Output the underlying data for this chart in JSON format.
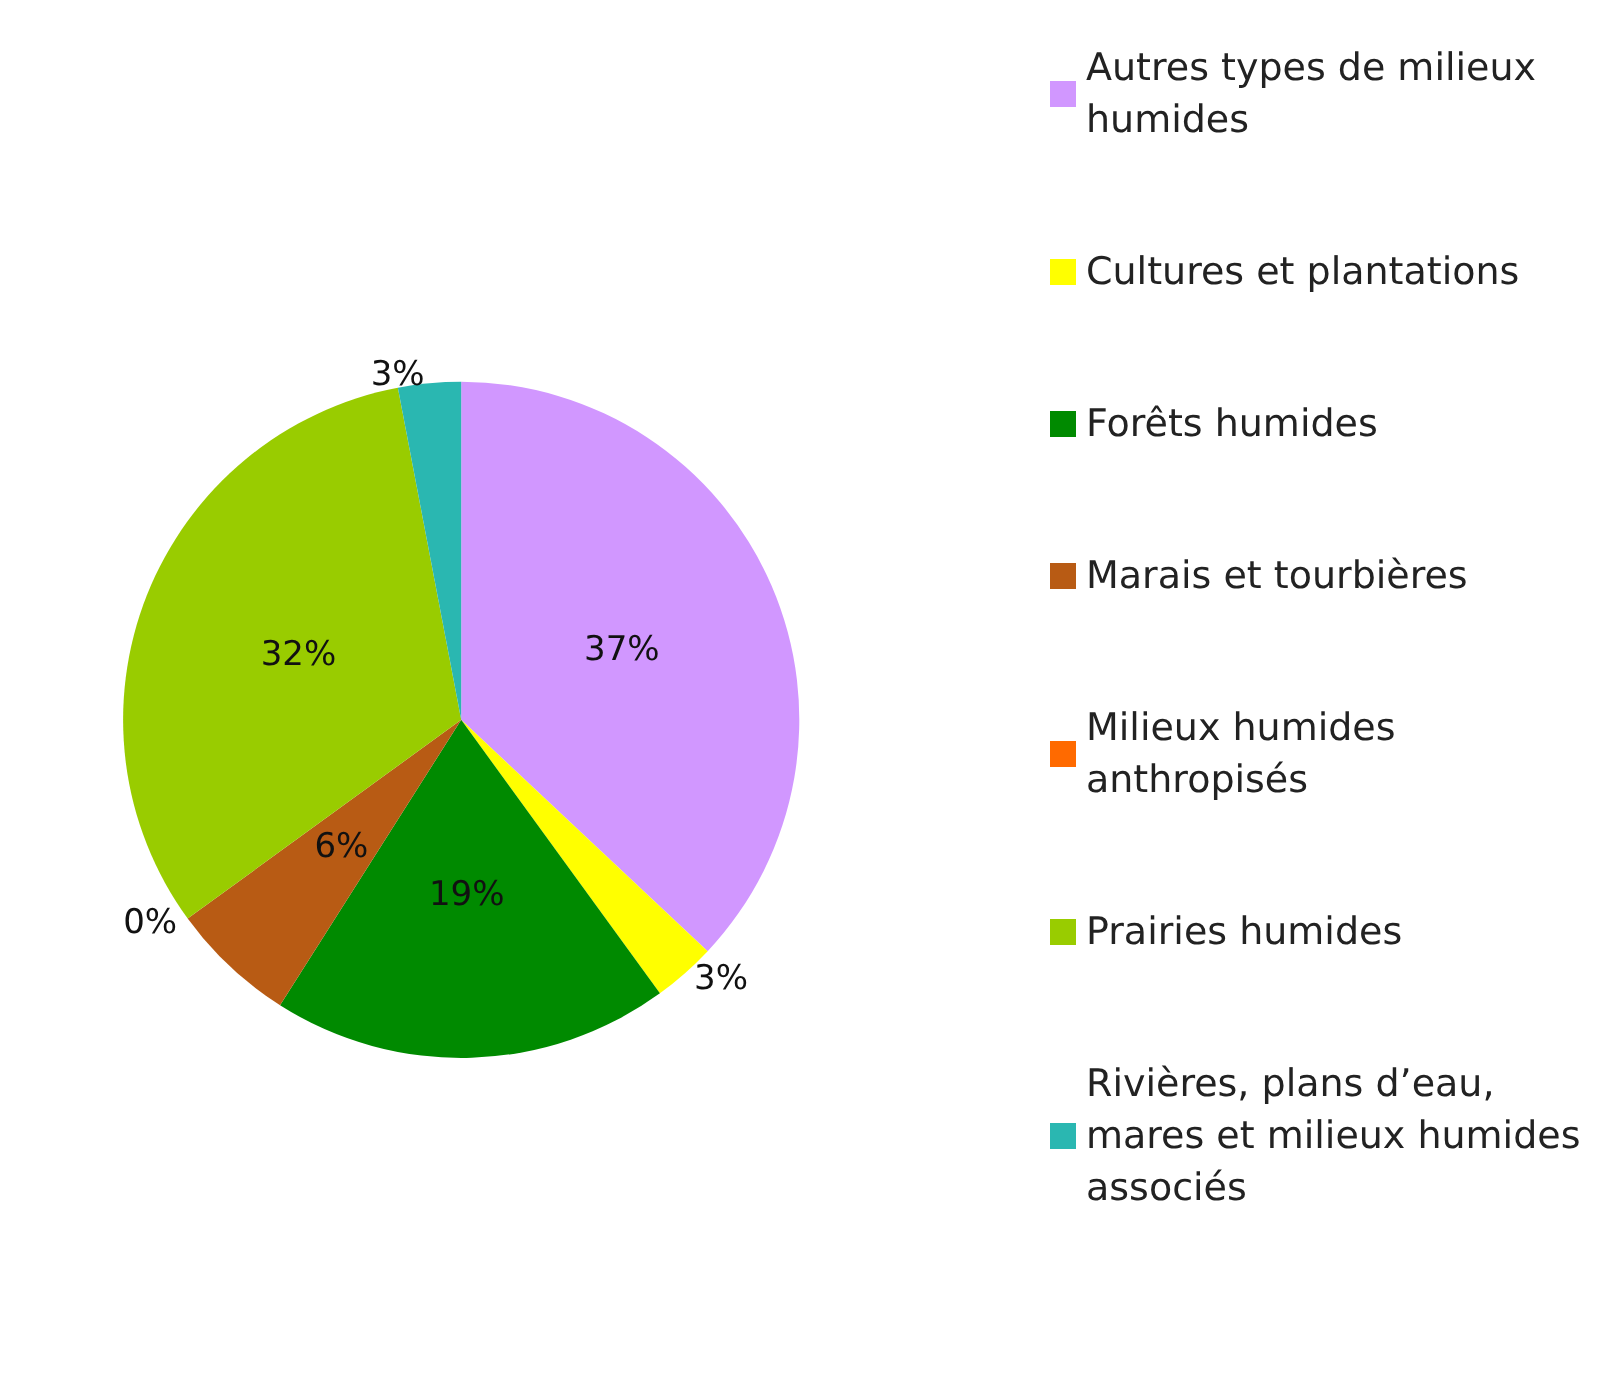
{
  "chart_data": {
    "type": "pie",
    "categories": [
      "Autres types de milieux humides",
      "Cultures et plantations",
      "Forêts humides",
      "Marais et tourbières",
      "Milieux humides anthropisés",
      "Prairies humides",
      "Rivières, plans d’eau, mares et milieux humides associés"
    ],
    "values": [
      37,
      3,
      19,
      6,
      0,
      32,
      3
    ],
    "value_labels": [
      "37%",
      "3%",
      "19%",
      "6%",
      "0%",
      "32%",
      "3%"
    ],
    "colors": [
      "#d197ff",
      "#ffff00",
      "#008a00",
      "#b85b14",
      "#ff6a00",
      "#99cc00",
      "#2ab7b1"
    ],
    "legend": "right"
  }
}
